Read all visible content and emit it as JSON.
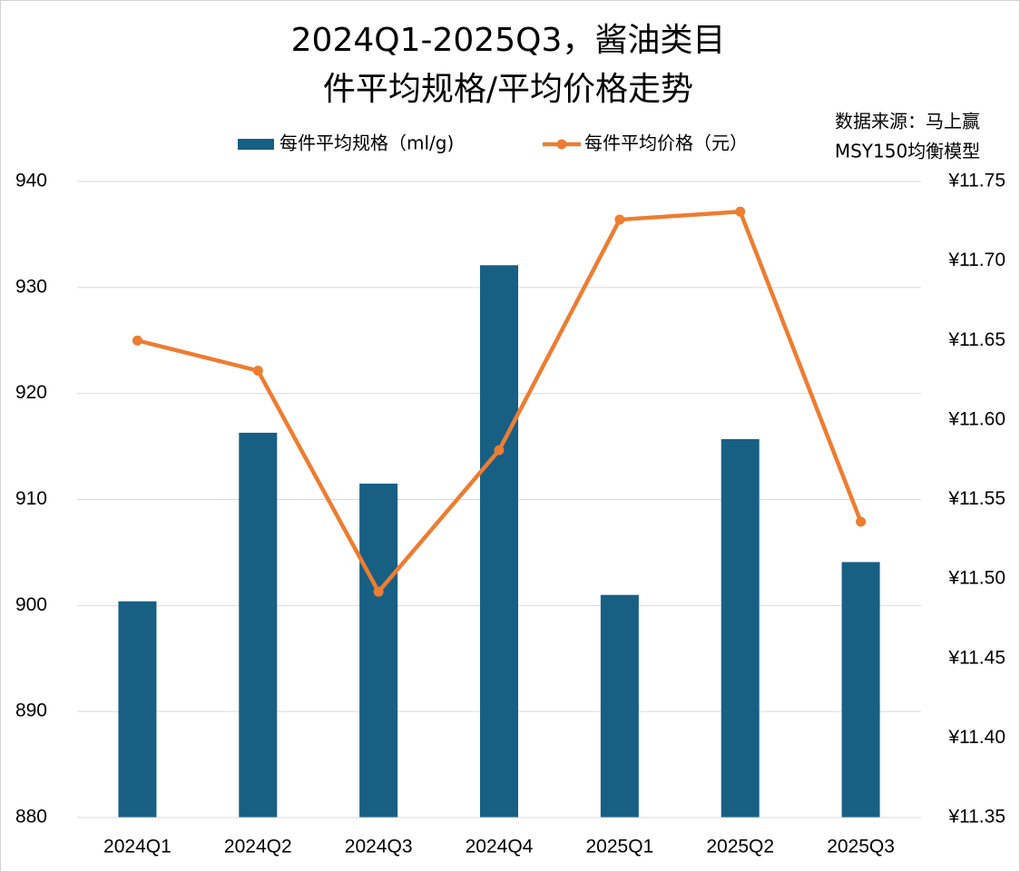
{
  "chart_data": {
    "type": "bar_line",
    "title": [
      "2024Q1-2025Q3，酱油类目",
      "件平均规格/平均价格走势"
    ],
    "annotations": [
      "数据来源：马上赢",
      "MSY150均衡模型"
    ],
    "categories": [
      "2024Q1",
      "2024Q2",
      "2024Q3",
      "2024Q4",
      "2025Q1",
      "2025Q2",
      "2025Q3"
    ],
    "series": [
      {
        "name": "每件平均规格（ml/g)",
        "type": "bar",
        "color": "#185f84",
        "values": [
          900.4,
          916.3,
          911.5,
          932.1,
          901.0,
          915.7,
          904.1
        ]
      },
      {
        "name": "每件平均价格（元）",
        "type": "line",
        "axis": "y2",
        "color": "#ed7d31",
        "values": [
          11.65,
          11.631,
          11.492,
          11.581,
          11.726,
          11.731,
          11.536
        ]
      }
    ],
    "ylim": [
      880,
      940
    ],
    "yticks": [
      880,
      890,
      900,
      910,
      920,
      930,
      940
    ],
    "y2lim": [
      11.35,
      11.75
    ],
    "y2ticks": [
      {
        "value": 11.35,
        "label": "¥11.35"
      },
      {
        "value": 11.4,
        "label": "¥11.40"
      },
      {
        "value": 11.45,
        "label": "¥11.45"
      },
      {
        "value": 11.5,
        "label": "¥11.50"
      },
      {
        "value": 11.55,
        "label": "¥11.55"
      },
      {
        "value": 11.6,
        "label": "¥11.60"
      },
      {
        "value": 11.65,
        "label": "¥11.65"
      },
      {
        "value": 11.7,
        "label": "¥11.70"
      },
      {
        "value": 11.75,
        "label": "¥11.75"
      }
    ],
    "grid": true
  }
}
